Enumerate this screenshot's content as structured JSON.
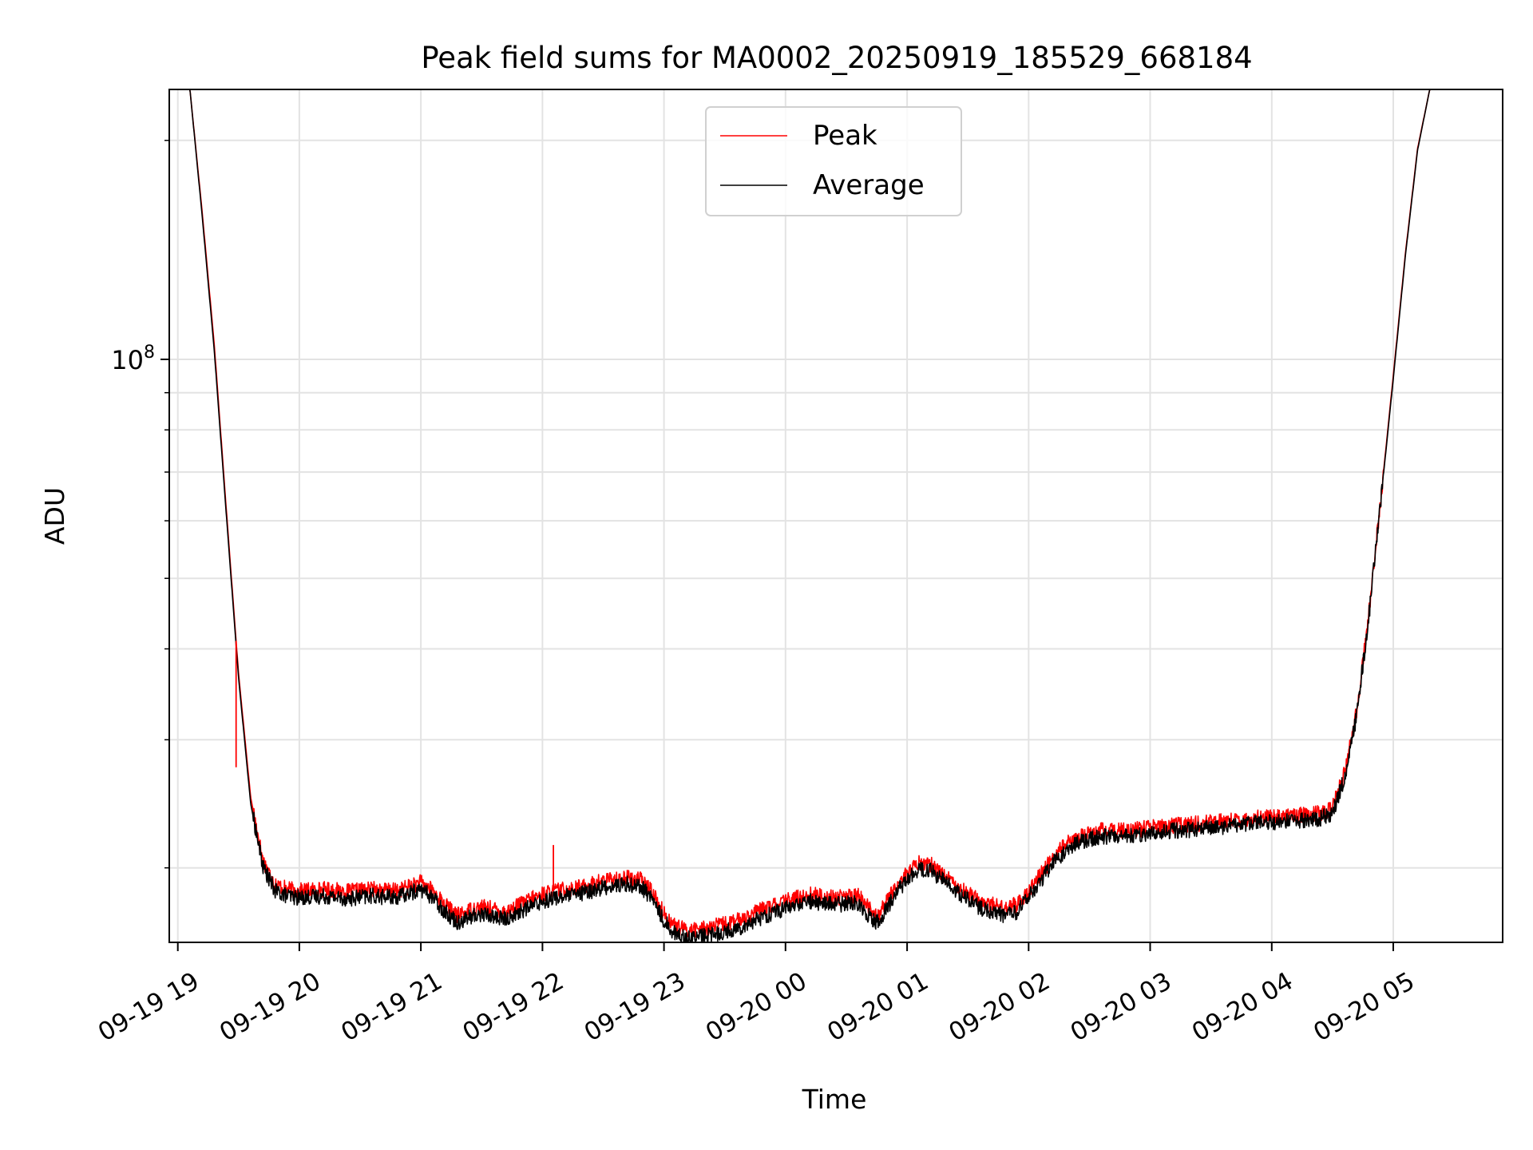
{
  "chart_data": {
    "type": "line",
    "title": "Peak field sums for MA0002_20250919_185529_668184",
    "xlabel": "Time",
    "ylabel": "ADU",
    "yscale": "log",
    "ylim": [
      15800000,
      235000000
    ],
    "xlim_hours": [
      -0.07,
      10.9
    ],
    "grid": true,
    "legend_position": "upper center",
    "x_tick_labels": [
      "09-19 19",
      "09-19 20",
      "09-19 21",
      "09-19 22",
      "09-19 23",
      "09-20 00",
      "09-20 01",
      "09-20 02",
      "09-20 03",
      "09-20 04",
      "09-20 05"
    ],
    "x_tick_hours": [
      0,
      1,
      2,
      3,
      4,
      5,
      6,
      7,
      8,
      9,
      10
    ],
    "y_major_ticks": [
      {
        "value": 100000000,
        "mantissa": "10",
        "exponent": "8"
      }
    ],
    "y_minor_ticks": [
      20000000,
      30000000,
      40000000,
      50000000,
      60000000,
      70000000,
      80000000,
      90000000,
      200000000
    ],
    "x_units": "hours after 09-19 19:00",
    "series": [
      {
        "name": "Peak",
        "color": "#ff0000",
        "x": [
          -0.07,
          0.1,
          0.2,
          0.3,
          0.4,
          0.5,
          0.6,
          0.7,
          0.8,
          0.9,
          1.0,
          1.2,
          1.4,
          1.6,
          1.8,
          2.0,
          2.1,
          2.2,
          2.3,
          2.4,
          2.5,
          2.7,
          2.9,
          3.0,
          3.1,
          3.3,
          3.5,
          3.7,
          3.8,
          3.9,
          4.0,
          4.1,
          4.2,
          4.4,
          4.6,
          4.8,
          5.0,
          5.2,
          5.4,
          5.6,
          5.7,
          5.75,
          5.8,
          5.9,
          6.0,
          6.1,
          6.2,
          6.3,
          6.4,
          6.6,
          6.8,
          6.9,
          7.0,
          7.1,
          7.2,
          7.3,
          7.4,
          7.5,
          7.6,
          7.8,
          8.0,
          8.2,
          8.4,
          8.6,
          8.8,
          9.0,
          9.2,
          9.4,
          9.5,
          9.6,
          9.7,
          9.8,
          9.9,
          10.0,
          10.1,
          10.2,
          10.3,
          10.4,
          10.48,
          10.6,
          10.9
        ],
        "values": [
          235000000,
          235000000,
          160000000,
          105000000,
          62000000,
          37000000,
          25000000,
          20500000,
          19000000,
          18700000,
          18600000,
          18700000,
          18550000,
          18700000,
          18600000,
          19100000,
          18600000,
          17800000,
          17200000,
          17500000,
          17700000,
          17400000,
          18100000,
          18400000,
          18600000,
          18800000,
          19200000,
          19400000,
          19300000,
          18600000,
          17300000,
          16600000,
          16400000,
          16600000,
          16900000,
          17500000,
          18000000,
          18400000,
          18200000,
          18300000,
          17500000,
          17200000,
          17600000,
          18800000,
          19700000,
          20300000,
          20200000,
          19600000,
          19000000,
          18000000,
          17600000,
          17800000,
          18600000,
          19600000,
          20700000,
          21500000,
          22000000,
          22300000,
          22500000,
          22500000,
          22700000,
          22900000,
          23000000,
          23200000,
          23400000,
          23500000,
          23600000,
          23800000,
          24200000,
          27000000,
          33000000,
          45000000,
          65000000,
          95000000,
          140000000,
          195000000,
          235000000,
          235000000,
          235000000,
          235000000,
          235000000
        ]
      },
      {
        "name": "Average",
        "color": "#000000",
        "x": [
          -0.07,
          0.1,
          0.2,
          0.3,
          0.4,
          0.5,
          0.6,
          0.7,
          0.8,
          0.9,
          1.0,
          1.2,
          1.4,
          1.6,
          1.8,
          2.0,
          2.1,
          2.2,
          2.3,
          2.4,
          2.5,
          2.7,
          2.9,
          3.0,
          3.1,
          3.3,
          3.5,
          3.7,
          3.8,
          3.9,
          4.0,
          4.1,
          4.2,
          4.4,
          4.6,
          4.8,
          5.0,
          5.2,
          5.4,
          5.6,
          5.7,
          5.75,
          5.8,
          5.9,
          6.0,
          6.1,
          6.2,
          6.3,
          6.4,
          6.6,
          6.8,
          6.9,
          7.0,
          7.1,
          7.2,
          7.3,
          7.4,
          7.5,
          7.6,
          7.8,
          8.0,
          8.2,
          8.4,
          8.6,
          8.8,
          9.0,
          9.2,
          9.4,
          9.5,
          9.6,
          9.7,
          9.8,
          9.9,
          10.0,
          10.1,
          10.2,
          10.3,
          10.4,
          10.48,
          10.6,
          10.9
        ],
        "values": [
          235000000,
          235000000,
          158000000,
          103000000,
          61000000,
          36500000,
          24500000,
          20100000,
          18600000,
          18300000,
          18200000,
          18300000,
          18150000,
          18300000,
          18200000,
          18700000,
          18200000,
          17400000,
          16850000,
          17100000,
          17300000,
          17000000,
          17700000,
          18000000,
          18200000,
          18400000,
          18800000,
          19000000,
          18900000,
          18200000,
          16900000,
          16200000,
          16000000,
          16200000,
          16500000,
          17100000,
          17600000,
          18000000,
          17800000,
          17900000,
          17100000,
          16800000,
          17200000,
          18400000,
          19300000,
          19900000,
          19800000,
          19200000,
          18600000,
          17600000,
          17200000,
          17400000,
          18200000,
          19200000,
          20300000,
          21100000,
          21600000,
          21900000,
          22100000,
          22100000,
          22300000,
          22500000,
          22600000,
          22800000,
          23000000,
          23100000,
          23200000,
          23400000,
          23800000,
          26600000,
          32500000,
          44500000,
          64500000,
          94000000,
          139000000,
          194000000,
          235000000,
          235000000,
          235000000,
          235000000,
          235000000
        ]
      }
    ],
    "annotations": [
      {
        "series": "Peak",
        "kind": "spike",
        "x": 0.48,
        "value": 27500000
      },
      {
        "series": "Peak",
        "kind": "spike",
        "x": 3.09,
        "value": 21500000
      }
    ]
  }
}
